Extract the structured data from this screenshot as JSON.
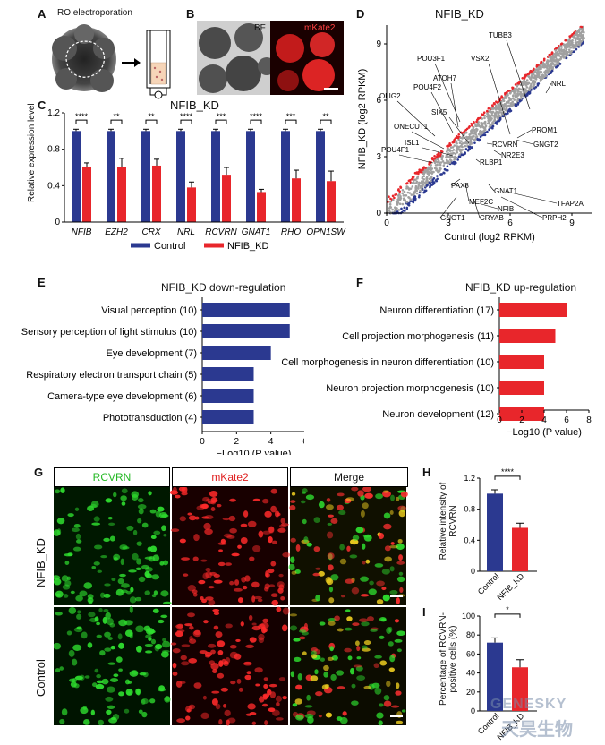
{
  "panels": {
    "A": "A",
    "B": "B",
    "C": "C",
    "D": "D",
    "E": "E",
    "F": "F",
    "G": "G",
    "H": "H",
    "I": "I"
  },
  "panelA": {
    "title": "RO electroporation"
  },
  "panelB": {
    "bf_label": "BF",
    "mkate_label": "mKate2"
  },
  "colors": {
    "control": "#2b3990",
    "knockdown": "#e8262b",
    "down_dots": "#2b3990",
    "up_dots": "#e8262b",
    "ns_dots": "#a0a0a0"
  },
  "chart_data": [
    {
      "id": "C",
      "type": "bar",
      "title": "NFIB_KD",
      "ylabel": "Relative expression level",
      "ylim": [
        0,
        1.2
      ],
      "yticks": [
        "0",
        "0.4",
        "0.8",
        "1.2"
      ],
      "categories": [
        "NFIB",
        "EZH2",
        "CRX",
        "NRL",
        "RCVRN",
        "GNAT1",
        "RHO",
        "OPN1SW"
      ],
      "series": [
        {
          "name": "Control",
          "values": [
            1,
            1,
            1,
            1,
            1,
            1,
            1,
            1
          ],
          "errors": [
            0.02,
            0.02,
            0.02,
            0.02,
            0.02,
            0.02,
            0.02,
            0.02
          ]
        },
        {
          "name": "NFIB_KD",
          "values": [
            0.61,
            0.6,
            0.62,
            0.38,
            0.52,
            0.33,
            0.48,
            0.45
          ],
          "errors": [
            0.04,
            0.1,
            0.07,
            0.06,
            0.08,
            0.03,
            0.09,
            0.11
          ]
        }
      ],
      "significance": [
        "****",
        "**",
        "**",
        "****",
        "***",
        "****",
        "***",
        "**"
      ]
    },
    {
      "id": "D",
      "type": "scatter",
      "title": "NFIB_KD",
      "xlabel": "Control (log2 RPKM)",
      "ylabel": "NFIB_KD (log2 RPKM)",
      "xlim": [
        0,
        10
      ],
      "ylim": [
        0,
        10
      ],
      "xticks": [
        0,
        3,
        6,
        9
      ],
      "yticks": [
        0,
        3,
        6,
        9
      ],
      "annotations_up": [
        "TUBB3",
        "VSX2",
        "POU3F1",
        "ATOH7",
        "POU4F2",
        "OLIG2",
        "SIX5",
        "ONECUT1",
        "ISL1",
        "POU4F1"
      ],
      "annotations_down": [
        "NRL",
        "PROM1",
        "GNGT2",
        "RCVRN",
        "NR2E3",
        "RLBP1",
        "PAX8",
        "MEF2C",
        "GNAT1",
        "TFAP2A",
        "PRPH2",
        "GNGT1",
        "CRYAB",
        "NFIB"
      ]
    },
    {
      "id": "E",
      "type": "bar",
      "title": "NFIB_KD down-regulation",
      "xlabel": "−Log10 (P value)",
      "xlim": [
        0,
        6
      ],
      "xticks": [
        "0",
        "2",
        "4",
        "6"
      ],
      "categories": [
        "Visual perception (10)",
        "Sensory perception of light stimulus (10)",
        "Eye development (7)",
        "Respiratory electron transport chain (5)",
        "Camera-type eye development (6)",
        "Phototransduction (4)"
      ],
      "values": [
        5.1,
        5.1,
        4.0,
        3.0,
        3.0,
        3.0
      ]
    },
    {
      "id": "F",
      "type": "bar",
      "title": "NFIB_KD up-regulation",
      "xlabel": "−Log10 (P value)",
      "xlim": [
        0,
        8
      ],
      "xticks": [
        "0",
        "2",
        "4",
        "6",
        "8"
      ],
      "categories": [
        "Neuron differentiation (17)",
        "Cell projection morphogenesis (11)",
        "Cell morphogenesis in neuron differentiation (10)",
        "Neuron projection morphogenesis (10)",
        "Neuron development (12)"
      ],
      "values": [
        6.0,
        5.0,
        4.0,
        4.0,
        4.0
      ]
    },
    {
      "id": "H",
      "type": "bar",
      "ylabel": "Relative intensity of RCVRN",
      "ylim": [
        0,
        1.2
      ],
      "yticks": [
        "0",
        "0.4",
        "0.8",
        "1.2"
      ],
      "categories": [
        "Control",
        "NFIB_KD"
      ],
      "values": [
        1.0,
        0.56
      ],
      "errors": [
        0.05,
        0.06
      ],
      "significance": "****"
    },
    {
      "id": "I",
      "type": "bar",
      "ylabel": "Percentage of RCVRN-positive cells (%)",
      "ylim": [
        0,
        100
      ],
      "yticks": [
        "0",
        "20",
        "40",
        "60",
        "80",
        "100"
      ],
      "categories": [
        "Control",
        "NFIB_KD"
      ],
      "values": [
        72,
        46
      ],
      "errors": [
        5,
        8
      ],
      "significance": "*"
    }
  ],
  "panelG": {
    "col_titles": [
      "RCVRN",
      "mKate2",
      "Merge"
    ],
    "row_labels": [
      "NFIB_KD",
      "Control"
    ]
  },
  "watermark": {
    "line1": "GENESKY",
    "line2": "天昊生物"
  }
}
